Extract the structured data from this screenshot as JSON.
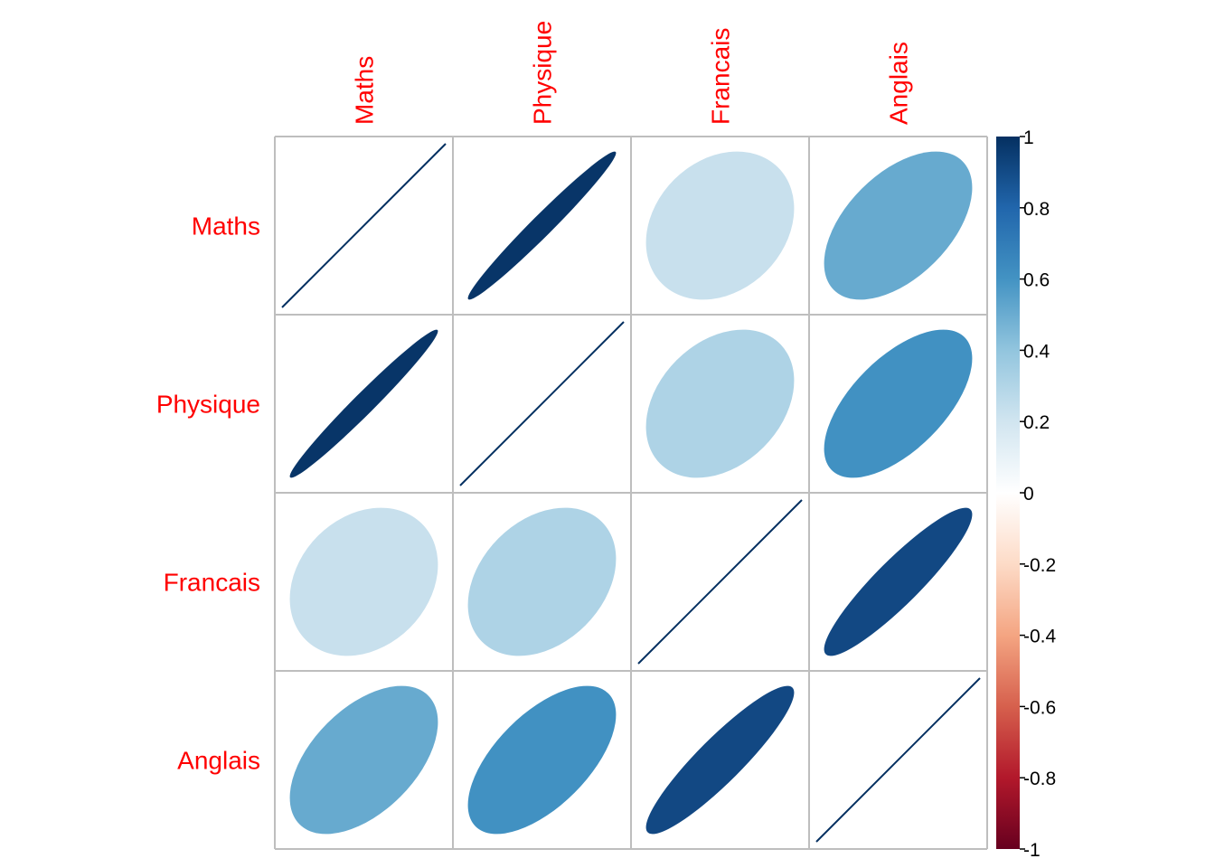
{
  "chart_data": {
    "type": "heatmap",
    "subtype": "correlation-ellipse",
    "variables": [
      "Maths",
      "Physique",
      "Francais",
      "Anglais"
    ],
    "matrix": [
      [
        1.0,
        0.98,
        0.23,
        0.51
      ],
      [
        0.98,
        1.0,
        0.31,
        0.61
      ],
      [
        0.23,
        0.31,
        1.0,
        0.91
      ],
      [
        0.51,
        0.61,
        0.91,
        1.0
      ]
    ],
    "label_color": "#FF0000",
    "grid_color": "#BEBEBE",
    "grid": true,
    "colorbar": {
      "ticks": [
        "1",
        "0.8",
        "0.6",
        "0.4",
        "0.2",
        "0",
        "-0.2",
        "-0.4",
        "-0.6",
        "-0.8",
        "-1"
      ],
      "range": [
        -1,
        1
      ],
      "placement": "right",
      "colors": [
        "#67001F",
        "#B2182B",
        "#D6604D",
        "#F4A582",
        "#FDDBC7",
        "#FFFFFF",
        "#D1E5F0",
        "#92C5DE",
        "#4393C3",
        "#2166AC",
        "#053061"
      ]
    },
    "title": "",
    "xlabel": "",
    "ylabel": ""
  }
}
